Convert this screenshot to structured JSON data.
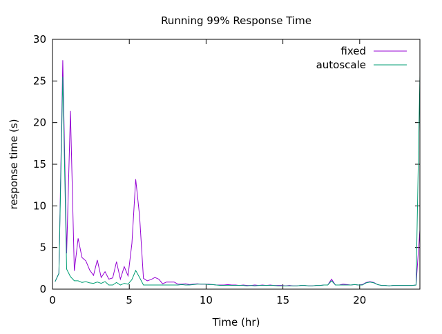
{
  "chart_data": {
    "type": "line",
    "title": "Running 99% Response Time",
    "xlabel": "Time (hr)",
    "ylabel": "response time (s)",
    "xlim": [
      0,
      23.92
    ],
    "ylim": [
      0,
      30
    ],
    "xticks": [
      0,
      5,
      10,
      15,
      20
    ],
    "yticks": [
      0,
      5,
      10,
      15,
      20,
      25,
      30
    ],
    "grid": false,
    "legend_position": "top-right",
    "x": [
      0.17,
      0.42,
      0.67,
      0.92,
      1.17,
      1.42,
      1.67,
      1.92,
      2.17,
      2.42,
      2.67,
      2.92,
      3.17,
      3.42,
      3.67,
      3.92,
      4.17,
      4.42,
      4.67,
      4.92,
      5.17,
      5.42,
      5.67,
      5.92,
      6.17,
      6.42,
      6.67,
      6.92,
      7.17,
      7.42,
      7.67,
      7.92,
      8.17,
      8.42,
      8.67,
      8.92,
      9.17,
      9.42,
      9.67,
      9.92,
      10.17,
      10.42,
      10.67,
      10.92,
      11.17,
      11.42,
      11.67,
      11.92,
      12.17,
      12.42,
      12.67,
      12.92,
      13.17,
      13.42,
      13.67,
      13.92,
      14.17,
      14.42,
      14.67,
      14.92,
      15.17,
      15.42,
      15.67,
      15.92,
      16.17,
      16.42,
      16.67,
      16.92,
      17.17,
      17.42,
      17.67,
      17.92,
      18.17,
      18.42,
      18.67,
      18.92,
      19.17,
      19.42,
      19.67,
      19.92,
      20.17,
      20.42,
      20.67,
      20.92,
      21.17,
      21.42,
      21.67,
      21.92,
      22.17,
      22.42,
      22.67,
      22.92,
      23.17,
      23.42,
      23.67,
      23.92
    ],
    "series": [
      {
        "name": "fixed",
        "color": "#9400d3",
        "values": [
          0.9,
          1.9,
          27.5,
          4.3,
          21.4,
          2.2,
          6.1,
          3.8,
          3.4,
          2.3,
          1.65,
          3.5,
          1.4,
          2.1,
          1.2,
          1.35,
          3.3,
          1.2,
          2.7,
          1.6,
          5.5,
          13.2,
          8.8,
          1.3,
          1.0,
          1.15,
          1.4,
          1.2,
          0.65,
          0.85,
          0.85,
          0.85,
          0.6,
          0.6,
          0.65,
          0.55,
          0.6,
          0.65,
          0.6,
          0.6,
          0.6,
          0.55,
          0.5,
          0.5,
          0.5,
          0.55,
          0.5,
          0.5,
          0.45,
          0.5,
          0.45,
          0.45,
          0.5,
          0.45,
          0.5,
          0.45,
          0.5,
          0.45,
          0.45,
          0.45,
          0.4,
          0.45,
          0.4,
          0.4,
          0.45,
          0.45,
          0.4,
          0.4,
          0.45,
          0.45,
          0.5,
          0.5,
          1.2,
          0.5,
          0.5,
          0.6,
          0.55,
          0.5,
          0.55,
          0.5,
          0.55,
          0.8,
          0.9,
          0.8,
          0.55,
          0.45,
          0.45,
          0.4,
          0.45,
          0.45,
          0.45,
          0.45,
          0.45,
          0.45,
          0.5,
          7.1
        ]
      },
      {
        "name": "autoscale",
        "color": "#009e73",
        "values": [
          0.9,
          1.9,
          25.5,
          2.4,
          1.5,
          1.0,
          1.0,
          0.8,
          0.9,
          0.75,
          0.7,
          0.85,
          0.7,
          0.9,
          0.5,
          0.5,
          0.8,
          0.5,
          0.7,
          0.6,
          1.15,
          2.25,
          1.4,
          0.5,
          0.5,
          0.5,
          0.5,
          0.5,
          0.5,
          0.5,
          0.5,
          0.5,
          0.5,
          0.55,
          0.5,
          0.5,
          0.55,
          0.6,
          0.6,
          0.6,
          0.55,
          0.55,
          0.5,
          0.45,
          0.45,
          0.45,
          0.45,
          0.45,
          0.45,
          0.45,
          0.4,
          0.45,
          0.4,
          0.45,
          0.45,
          0.45,
          0.45,
          0.45,
          0.4,
          0.4,
          0.4,
          0.4,
          0.4,
          0.4,
          0.45,
          0.45,
          0.4,
          0.4,
          0.45,
          0.45,
          0.5,
          0.5,
          1.0,
          0.5,
          0.5,
          0.5,
          0.5,
          0.5,
          0.55,
          0.5,
          0.5,
          0.75,
          0.85,
          0.75,
          0.55,
          0.45,
          0.45,
          0.4,
          0.45,
          0.45,
          0.45,
          0.45,
          0.45,
          0.45,
          0.5,
          25.6
        ]
      }
    ]
  }
}
